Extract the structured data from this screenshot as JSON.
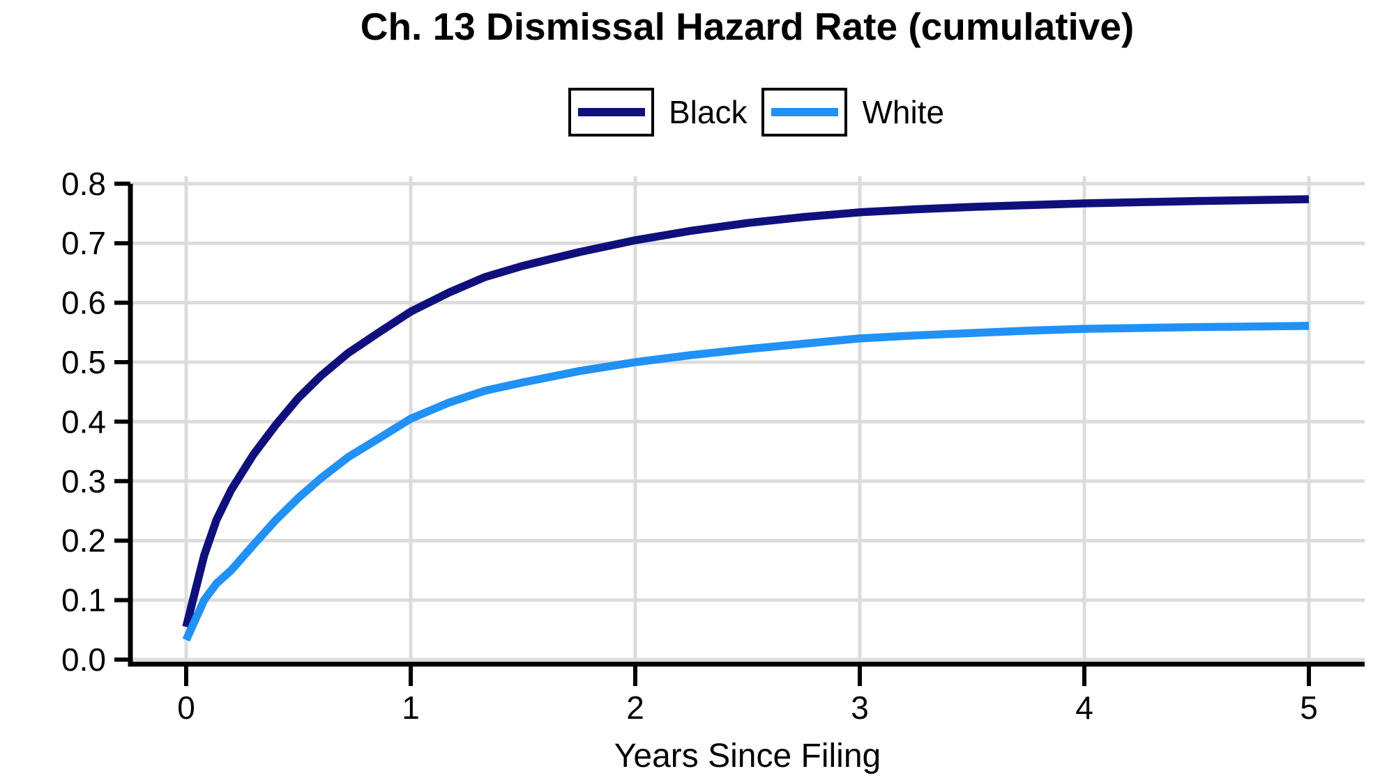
{
  "title": "Ch. 13 Dismissal Hazard Rate (cumulative)",
  "colors": {
    "background": "#ffffff",
    "axis": "#000000",
    "gridline": "#dcdcdc",
    "text": "#000000",
    "series_black": "#10107d",
    "series_white": "#2191f5"
  },
  "chart_data": {
    "type": "line",
    "title": "Ch. 13 Dismissal Hazard Rate (cumulative)",
    "xlabel": "Years Since Filing",
    "ylabel": "",
    "xlim": [
      0,
      5
    ],
    "ylim": [
      0.0,
      0.8
    ],
    "grid": true,
    "legend_position": "top-center",
    "x_ticks": [
      0,
      1,
      2,
      3,
      4,
      5
    ],
    "x_tick_labels": [
      "0",
      "1",
      "2",
      "3",
      "4",
      "5"
    ],
    "y_ticks": [
      0.0,
      0.1,
      0.2,
      0.3,
      0.4,
      0.5,
      0.6,
      0.7,
      0.8
    ],
    "y_tick_labels": [
      "0.0",
      "0.1",
      "0.2",
      "0.3",
      "0.4",
      "0.5",
      "0.6",
      "0.7",
      "0.8"
    ],
    "x": [
      0,
      0.08,
      0.135,
      0.2,
      0.3,
      0.4,
      0.5,
      0.6,
      0.72,
      0.85,
      1.0,
      1.17,
      1.33,
      1.5,
      1.75,
      2.0,
      2.25,
      2.5,
      2.75,
      3.0,
      3.25,
      3.5,
      3.75,
      4.0,
      4.5,
      5.0
    ],
    "series": [
      {
        "name": "Black",
        "color": "#10107d",
        "values": [
          0.055,
          0.175,
          0.235,
          0.285,
          0.345,
          0.395,
          0.44,
          0.477,
          0.515,
          0.548,
          0.585,
          0.617,
          0.643,
          0.662,
          0.685,
          0.705,
          0.721,
          0.734,
          0.744,
          0.752,
          0.757,
          0.761,
          0.764,
          0.767,
          0.771,
          0.774
        ]
      },
      {
        "name": "White",
        "color": "#2191f5",
        "values": [
          0.033,
          0.1,
          0.128,
          0.15,
          0.193,
          0.235,
          0.272,
          0.305,
          0.34,
          0.37,
          0.405,
          0.432,
          0.452,
          0.466,
          0.485,
          0.5,
          0.512,
          0.522,
          0.531,
          0.54,
          0.545,
          0.549,
          0.553,
          0.556,
          0.559,
          0.561
        ]
      }
    ]
  }
}
